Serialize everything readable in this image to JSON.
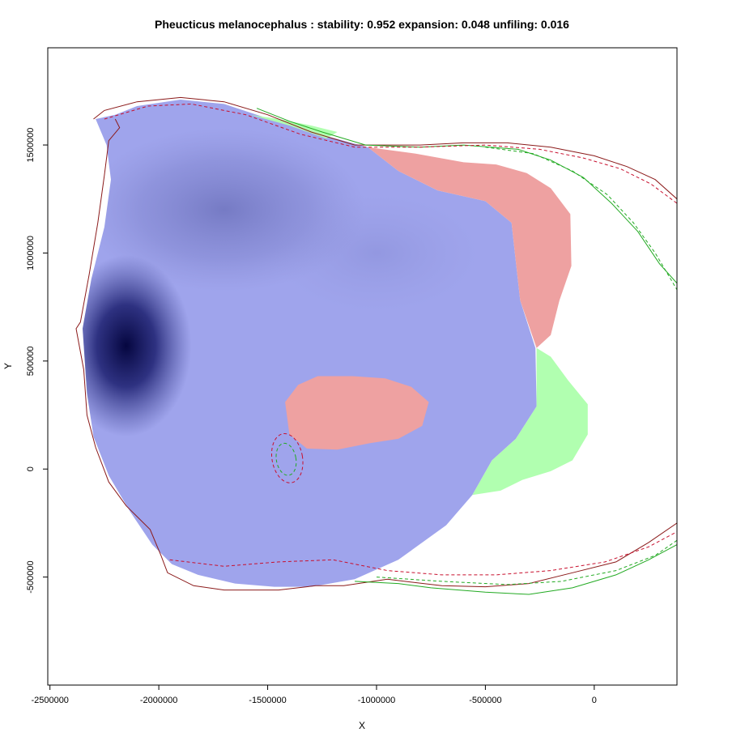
{
  "chart_data": {
    "type": "heatmap",
    "title": "Pheucticus melanocephalus : stability: 0.952 expansion: 0.048 unfiling: 0.016",
    "xlabel": "X",
    "ylabel": "Y",
    "xlim": [
      -2510000,
      380000
    ],
    "ylim": [
      -1000000,
      1950000
    ],
    "x_ticks": [
      -2500000,
      -2000000,
      -1500000,
      -1000000,
      -500000,
      0
    ],
    "x_tick_labels": [
      "-2500000",
      "-2000000",
      "-1500000",
      "-1000000",
      "-500000",
      "0"
    ],
    "y_ticks": [
      -500000,
      0,
      500000,
      1000000,
      1500000
    ],
    "y_tick_labels": [
      "-500000",
      "0",
      "500000",
      "1000000",
      "1500000"
    ],
    "grid": false,
    "legend": "none",
    "colors": {
      "stability_fill": "#9FA4EC",
      "density_dark": "#0A0C55",
      "density_mid": "#5A5FAA",
      "unfilling_fill": "#EEA1A1",
      "expansion_fill": "#B1FFB0",
      "native_outline": "#8B1A1A",
      "invaded_outline": "#22AA22",
      "native_ellipse": "#C8102E",
      "invaded_ellipse": "#22AA22"
    },
    "regions": {
      "stability": [
        [
          -2290000,
          1620000
        ],
        [
          -2200000,
          1640000
        ],
        [
          -2100000,
          1680000
        ],
        [
          -1900000,
          1710000
        ],
        [
          -1700000,
          1690000
        ],
        [
          -1550000,
          1640000
        ],
        [
          -1300000,
          1560000
        ],
        [
          -1040000,
          1490000
        ],
        [
          -900000,
          1380000
        ],
        [
          -720000,
          1290000
        ],
        [
          -500000,
          1240000
        ],
        [
          -380000,
          1140000
        ],
        [
          -360000,
          960000
        ],
        [
          -340000,
          780000
        ],
        [
          -270000,
          560000
        ],
        [
          -265000,
          290000
        ],
        [
          -360000,
          140000
        ],
        [
          -470000,
          40000
        ],
        [
          -560000,
          -120000
        ],
        [
          -680000,
          -260000
        ],
        [
          -900000,
          -420000
        ],
        [
          -1100000,
          -510000
        ],
        [
          -1300000,
          -545000
        ],
        [
          -1470000,
          -545000
        ],
        [
          -1650000,
          -530000
        ],
        [
          -1820000,
          -490000
        ],
        [
          -1940000,
          -440000
        ],
        [
          -2030000,
          -350000
        ],
        [
          -2130000,
          -200000
        ],
        [
          -2230000,
          -30000
        ],
        [
          -2300000,
          150000
        ],
        [
          -2330000,
          350000
        ],
        [
          -2350000,
          650000
        ],
        [
          -2310000,
          880000
        ],
        [
          -2250000,
          1120000
        ],
        [
          -2220000,
          1340000
        ],
        [
          -2240000,
          1500000
        ]
      ],
      "unfilling_east": [
        [
          -1040000,
          1490000
        ],
        [
          -820000,
          1460000
        ],
        [
          -600000,
          1420000
        ],
        [
          -450000,
          1410000
        ],
        [
          -310000,
          1370000
        ],
        [
          -200000,
          1300000
        ],
        [
          -110000,
          1180000
        ],
        [
          -105000,
          940000
        ],
        [
          -160000,
          780000
        ],
        [
          -200000,
          620000
        ],
        [
          -265000,
          560000
        ],
        [
          -340000,
          780000
        ],
        [
          -360000,
          960000
        ],
        [
          -380000,
          1140000
        ],
        [
          -500000,
          1240000
        ],
        [
          -720000,
          1290000
        ],
        [
          -900000,
          1380000
        ]
      ],
      "unfilling_center": [
        [
          -1420000,
          310000
        ],
        [
          -1360000,
          390000
        ],
        [
          -1270000,
          430000
        ],
        [
          -1110000,
          430000
        ],
        [
          -960000,
          420000
        ],
        [
          -840000,
          380000
        ],
        [
          -760000,
          310000
        ],
        [
          -790000,
          200000
        ],
        [
          -900000,
          140000
        ],
        [
          -1030000,
          120000
        ],
        [
          -1180000,
          90000
        ],
        [
          -1320000,
          95000
        ],
        [
          -1400000,
          160000
        ]
      ],
      "expansion_east": [
        [
          -265000,
          560000
        ],
        [
          -200000,
          520000
        ],
        [
          -120000,
          410000
        ],
        [
          -30000,
          300000
        ],
        [
          -30000,
          160000
        ],
        [
          -100000,
          40000
        ],
        [
          -200000,
          -10000
        ],
        [
          -330000,
          -50000
        ],
        [
          -430000,
          -100000
        ],
        [
          -560000,
          -120000
        ],
        [
          -470000,
          40000
        ],
        [
          -360000,
          140000
        ],
        [
          -265000,
          290000
        ]
      ],
      "expansion_top": [
        [
          -1580000,
          1640000
        ],
        [
          -1450000,
          1620000
        ],
        [
          -1300000,
          1590000
        ],
        [
          -1180000,
          1560000
        ],
        [
          -1230000,
          1530000
        ],
        [
          -1400000,
          1590000
        ]
      ]
    },
    "density": {
      "peak_1": {
        "x": -2150000,
        "y": 570000,
        "rx": 300000,
        "ry": 420000,
        "intensity": 1.0
      },
      "peak_2": {
        "x": -1700000,
        "y": 1200000,
        "rx": 650000,
        "ry": 380000,
        "intensity": 0.6
      },
      "peak_3": {
        "x": -1000000,
        "y": 1000000,
        "rx": 480000,
        "ry": 280000,
        "intensity": 0.35
      }
    },
    "ellipses": {
      "native_95": {
        "cx": -1410000,
        "cy": 50000,
        "rx": 70000,
        "ry": 115000,
        "angle": -10
      },
      "invaded_95": {
        "cx": -1415000,
        "cy": 45000,
        "rx": 45000,
        "ry": 75000,
        "angle": -10
      }
    },
    "outlines": {
      "native_left": [
        [
          -2200000,
          1620000
        ],
        [
          -2180000,
          1580000
        ],
        [
          -2230000,
          1520000
        ],
        [
          -2250000,
          1360000
        ],
        [
          -2280000,
          1140000
        ],
        [
          -2320000,
          900000
        ],
        [
          -2360000,
          680000
        ],
        [
          -2380000,
          650000
        ],
        [
          -2345000,
          460000
        ],
        [
          -2330000,
          250000
        ],
        [
          -2290000,
          100000
        ],
        [
          -2230000,
          -60000
        ],
        [
          -2150000,
          -170000
        ],
        [
          -2040000,
          -280000
        ],
        [
          -1990000,
          -400000
        ],
        [
          -1960000,
          -480000
        ],
        [
          -1840000,
          -540000
        ],
        [
          -1700000,
          -560000
        ],
        [
          -1550000,
          -560000
        ],
        [
          -1450000,
          -560000
        ],
        [
          -1280000,
          -540000
        ],
        [
          -1150000,
          -540000
        ],
        [
          -950000,
          -510000
        ],
        [
          -700000,
          -540000
        ],
        [
          -500000,
          -545000
        ],
        [
          -300000,
          -530000
        ],
        [
          -100000,
          -480000
        ],
        [
          100000,
          -430000
        ],
        [
          250000,
          -340000
        ],
        [
          380000,
          -250000
        ]
      ],
      "native_top": [
        [
          -2300000,
          1620000
        ],
        [
          -2250000,
          1660000
        ],
        [
          -2100000,
          1700000
        ],
        [
          -1900000,
          1720000
        ],
        [
          -1700000,
          1700000
        ],
        [
          -1500000,
          1640000
        ],
        [
          -1300000,
          1560000
        ],
        [
          -1100000,
          1500000
        ],
        [
          -800000,
          1500000
        ],
        [
          -600000,
          1510000
        ],
        [
          -400000,
          1510000
        ],
        [
          -200000,
          1490000
        ],
        [
          0,
          1450000
        ],
        [
          150000,
          1400000
        ],
        [
          280000,
          1340000
        ],
        [
          380000,
          1250000
        ]
      ],
      "invaded_top": [
        [
          -1550000,
          1670000
        ],
        [
          -1400000,
          1610000
        ],
        [
          -1250000,
          1560000
        ],
        [
          -1050000,
          1500000
        ],
        [
          -800000,
          1490000
        ],
        [
          -600000,
          1500000
        ],
        [
          -350000,
          1480000
        ],
        [
          -200000,
          1430000
        ],
        [
          -50000,
          1350000
        ],
        [
          80000,
          1230000
        ],
        [
          200000,
          1100000
        ],
        [
          300000,
          950000
        ],
        [
          380000,
          860000
        ]
      ],
      "invaded_bottom": [
        [
          -1100000,
          -520000
        ],
        [
          -900000,
          -530000
        ],
        [
          -750000,
          -550000
        ],
        [
          -500000,
          -570000
        ],
        [
          -300000,
          -580000
        ],
        [
          -100000,
          -550000
        ],
        [
          100000,
          -490000
        ],
        [
          250000,
          -420000
        ],
        [
          380000,
          -350000
        ]
      ]
    },
    "kde_contours": {
      "native_top": [
        [
          -2250000,
          1620000
        ],
        [
          -2050000,
          1680000
        ],
        [
          -1850000,
          1690000
        ],
        [
          -1600000,
          1640000
        ],
        [
          -1350000,
          1550000
        ],
        [
          -1100000,
          1490000
        ],
        [
          -800000,
          1490000
        ],
        [
          -500000,
          1500000
        ],
        [
          -250000,
          1480000
        ],
        [
          -50000,
          1440000
        ],
        [
          120000,
          1390000
        ],
        [
          260000,
          1320000
        ],
        [
          380000,
          1230000
        ]
      ],
      "invaded_top": [
        [
          -500000,
          1490000
        ],
        [
          -280000,
          1460000
        ],
        [
          -100000,
          1380000
        ],
        [
          60000,
          1270000
        ],
        [
          180000,
          1140000
        ],
        [
          280000,
          1000000
        ],
        [
          380000,
          830000
        ]
      ],
      "native_bottom": [
        [
          -1950000,
          -420000
        ],
        [
          -1700000,
          -450000
        ],
        [
          -1450000,
          -430000
        ],
        [
          -1200000,
          -420000
        ],
        [
          -950000,
          -470000
        ],
        [
          -700000,
          -490000
        ],
        [
          -450000,
          -490000
        ],
        [
          -200000,
          -470000
        ],
        [
          50000,
          -430000
        ],
        [
          250000,
          -360000
        ],
        [
          380000,
          -290000
        ]
      ],
      "invaded_bottom": [
        [
          -1000000,
          -500000
        ],
        [
          -700000,
          -520000
        ],
        [
          -400000,
          -535000
        ],
        [
          -150000,
          -520000
        ],
        [
          100000,
          -470000
        ],
        [
          280000,
          -400000
        ],
        [
          380000,
          -330000
        ]
      ]
    }
  }
}
